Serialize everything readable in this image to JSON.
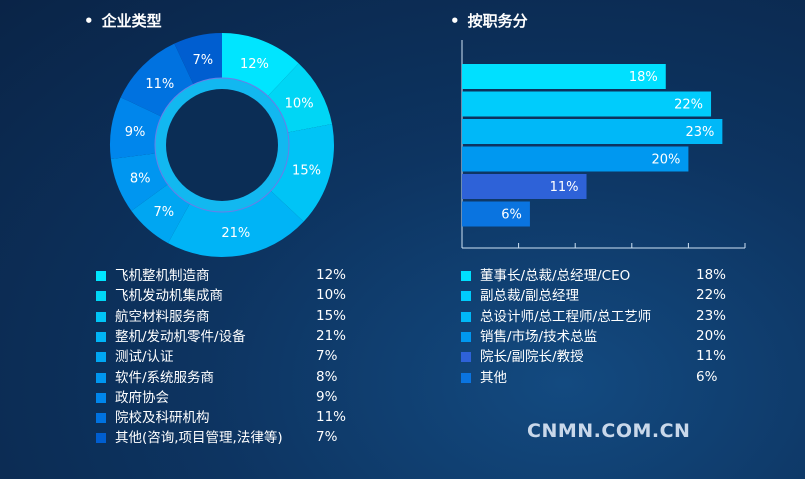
{
  "left": {
    "title": "企业类型",
    "items": [
      {
        "label": "飞机整机制造商",
        "value": 12,
        "pct": "12%",
        "color": "#00e5ff"
      },
      {
        "label": "飞机发动机集成商",
        "value": 10,
        "pct": "10%",
        "color": "#00d6f5"
      },
      {
        "label": "航空材料服务商",
        "value": 15,
        "pct": "15%",
        "color": "#00c4f6"
      },
      {
        "label": "整机/发动机零件/设备",
        "value": 21,
        "pct": "21%",
        "color": "#00b4f6"
      },
      {
        "label": "测试/认证",
        "value": 7,
        "pct": "7%",
        "color": "#00a6f2"
      },
      {
        "label": "软件/系统服务商",
        "value": 8,
        "pct": "8%",
        "color": "#0096f0"
      },
      {
        "label": "政府协会",
        "value": 9,
        "pct": "9%",
        "color": "#0086ec"
      },
      {
        "label": "院校及科研机构",
        "value": 11,
        "pct": "11%",
        "color": "#0072e0"
      },
      {
        "label": "其他(咨询,项目管理,法律等)",
        "value": 7,
        "pct": "7%",
        "color": "#005ed0"
      }
    ]
  },
  "right": {
    "title": "按职务分",
    "xlim": [
      0,
      25
    ],
    "items": [
      {
        "label": "董事长/总裁/总经理/CEO",
        "value": 18,
        "pct": "18%",
        "color": "#00e0ff"
      },
      {
        "label": "副总裁/副总经理",
        "value": 22,
        "pct": "22%",
        "color": "#00ccfc"
      },
      {
        "label": "总设计师/总工程师/总工艺师",
        "value": 23,
        "pct": "23%",
        "color": "#00b8f8"
      },
      {
        "label": "销售/市场/技术总监",
        "value": 20,
        "pct": "20%",
        "color": "#0098f0"
      },
      {
        "label": "院长/副院长/教授",
        "value": 11,
        "pct": "11%",
        "color": "#2e62d8"
      },
      {
        "label": "其他",
        "value": 6,
        "pct": "6%",
        "color": "#0a74e0"
      }
    ]
  },
  "brand": "CNMN.COM.CN"
}
